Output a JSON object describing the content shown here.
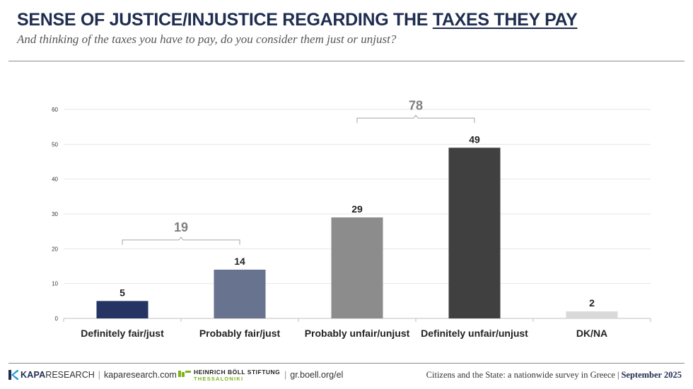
{
  "header": {
    "title_prefix": "SENSE OF JUSTICE/INJUSTICE REGARDING THE ",
    "title_emphasis": "TAXES THEY PAY",
    "subtitle": "And thinking of the taxes you have to pay, do you consider them just or unjust?"
  },
  "chart_data": {
    "type": "bar",
    "categories": [
      "Definitely fair/just",
      "Probably fair/just",
      "Probably unfair/unjust",
      "Definitely unfair/unjust",
      "DK/NA"
    ],
    "values": [
      5,
      14,
      29,
      49,
      2
    ],
    "data_labels": [
      "5",
      "14",
      "29",
      "49",
      "2"
    ],
    "bar_colors": [
      "#253463",
      "#67738f",
      "#8c8c8c",
      "#404040",
      "#d9d9d9"
    ],
    "ylim": [
      0,
      60
    ],
    "yticks": [
      0,
      10,
      20,
      30,
      40,
      50,
      60
    ],
    "grid": true,
    "groups": [
      {
        "label": "19",
        "from": 0,
        "to": 1
      },
      {
        "label": "78",
        "from": 2,
        "to": 3
      }
    ]
  },
  "footer": {
    "kapa_brand": "KAPA",
    "kapa_brand_rest": "RESEARCH",
    "kapa_url": "kaparesearch.com",
    "boell_name": "HEINRICH BÖLL STIFTUNG",
    "boell_city": "THESSALONIKI",
    "boell_url": "gr.boell.org/el",
    "survey": "Citizens and the State: a nationwide survey in Greece",
    "date": "September 2025"
  }
}
